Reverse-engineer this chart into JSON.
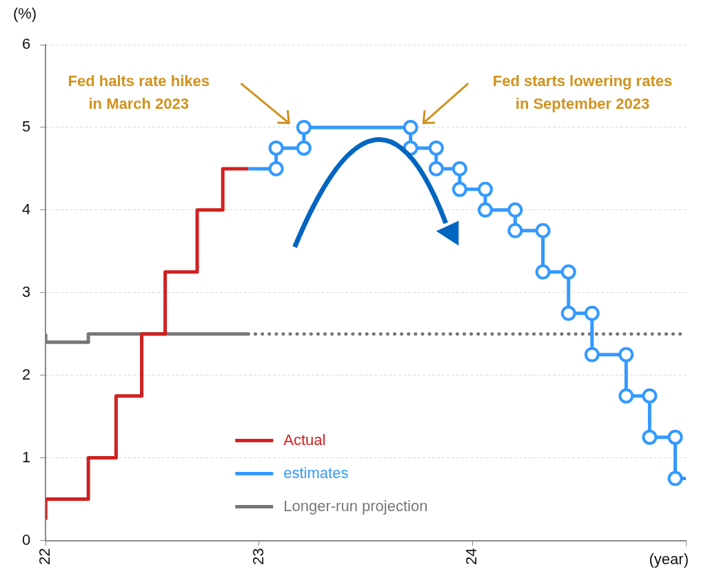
{
  "chart_data": {
    "type": "step",
    "ylabel": "(%)",
    "xlabel": "(year)",
    "xlim": [
      2022,
      2025
    ],
    "xticks": [
      {
        "value": 2022,
        "label": "22"
      },
      {
        "value": 2023,
        "label": "23"
      },
      {
        "value": 2024,
        "label": "24"
      },
      {
        "value": 2025,
        "label": null
      }
    ],
    "ylim": [
      0,
      6
    ],
    "yticks": [
      0,
      1,
      2,
      3,
      4,
      5,
      6
    ],
    "grid": "y",
    "legend": "bottom",
    "series": [
      {
        "name": "Actual",
        "color": "#d02020",
        "x": [
          2022,
          2022.2,
          2022.33,
          2022.45,
          2022.56,
          2022.71,
          2022.83,
          2022.95
        ],
        "values": [
          0.25,
          0.5,
          1.0,
          1.75,
          2.5,
          3.25,
          4.0,
          4.5
        ]
      },
      {
        "name": "estimates",
        "type": "line",
        "color": "#3399ff",
        "marker": "circle",
        "x": [
          2022.95,
          2023.08,
          2023.08,
          2023.21,
          2023.21,
          2023.71,
          2023.71,
          2023.83,
          2023.83,
          2023.94,
          2023.94,
          2024.06,
          2024.06,
          2024.2,
          2024.2,
          2024.33,
          2024.33,
          2024.45,
          2024.45,
          2024.56,
          2024.56,
          2024.72,
          2024.72,
          2024.83,
          2024.83,
          2024.95,
          2024.95,
          2025
        ],
        "values": [
          4.5,
          4.5,
          4.75,
          4.75,
          5,
          5,
          4.75,
          4.75,
          4.5,
          4.5,
          4.25,
          4.25,
          4.0,
          4.0,
          3.75,
          3.75,
          3.25,
          3.25,
          2.75,
          2.75,
          2.25,
          2.25,
          1.75,
          1.75,
          1.25,
          1.25,
          0.75,
          0.75
        ]
      },
      {
        "name": "Longer-run projection",
        "color": "#777777",
        "x": [
          2022,
          2022.2,
          2022.45,
          2022.95
        ],
        "values": [
          2.5,
          2.4,
          2.5,
          2.5
        ]
      },
      {
        "type": "line",
        "color": "#777777",
        "line_style": "dotted",
        "x": [
          2022.95,
          2025
        ],
        "values": [
          2.5,
          2.5
        ]
      }
    ],
    "annotations": [
      "Fed halts rate hikes\nin March 2023",
      "Fed starts lowering rates\nin September 2023"
    ]
  }
}
